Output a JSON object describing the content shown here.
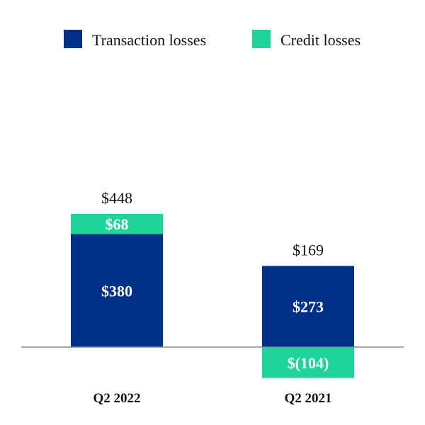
{
  "chart_data": {
    "type": "bar",
    "stacked": true,
    "categories": [
      "Q2 2022",
      "Q2 2021"
    ],
    "series": [
      {
        "name": "Transaction losses",
        "values": [
          380,
          273
        ],
        "labels": [
          "$380",
          "$273"
        ],
        "color": "#003087"
      },
      {
        "name": "Credit losses",
        "values": [
          68,
          -104
        ],
        "labels": [
          "$68",
          "$(104)"
        ],
        "color": "#1ed49a"
      }
    ],
    "totals": [
      448,
      169
    ],
    "total_labels": [
      "$448",
      "$169"
    ],
    "title": "",
    "xlabel": "",
    "ylabel": "",
    "legend_position": "top-center",
    "grid": false,
    "baseline_color": "#888888"
  }
}
